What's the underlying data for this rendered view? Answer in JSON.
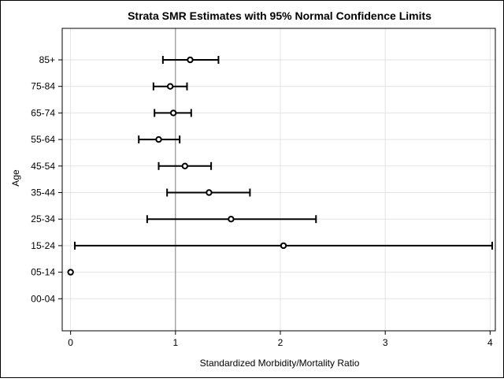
{
  "chart_data": {
    "type": "scatter",
    "title": "Strata SMR Estimates with 95% Normal Confidence Limits",
    "xlabel": "Standardized Morbidity/Mortality Ratio",
    "ylabel": "Age",
    "xlim": [
      -0.08,
      4.05
    ],
    "xticks": [
      0,
      1,
      2,
      3,
      4
    ],
    "reference_line_x": 1,
    "grid": true,
    "categories": [
      "85+",
      "75-84",
      "65-74",
      "55-64",
      "45-54",
      "35-44",
      "25-34",
      "15-24",
      "05-14",
      "00-04"
    ],
    "points": [
      {
        "age": "85+",
        "smr": 1.14,
        "lower": 0.88,
        "upper": 1.41
      },
      {
        "age": "75-84",
        "smr": 0.95,
        "lower": 0.79,
        "upper": 1.11
      },
      {
        "age": "65-74",
        "smr": 0.98,
        "lower": 0.8,
        "upper": 1.15
      },
      {
        "age": "55-64",
        "smr": 0.84,
        "lower": 0.65,
        "upper": 1.04
      },
      {
        "age": "45-54",
        "smr": 1.09,
        "lower": 0.84,
        "upper": 1.34
      },
      {
        "age": "35-44",
        "smr": 1.32,
        "lower": 0.92,
        "upper": 1.71
      },
      {
        "age": "25-34",
        "smr": 1.53,
        "lower": 0.73,
        "upper": 2.34
      },
      {
        "age": "15-24",
        "smr": 2.03,
        "lower": 0.04,
        "upper": 4.02
      },
      {
        "age": "05-14",
        "smr": 0.0,
        "lower": null,
        "upper": null
      },
      {
        "age": "00-04",
        "smr": null,
        "lower": null,
        "upper": null
      }
    ]
  }
}
